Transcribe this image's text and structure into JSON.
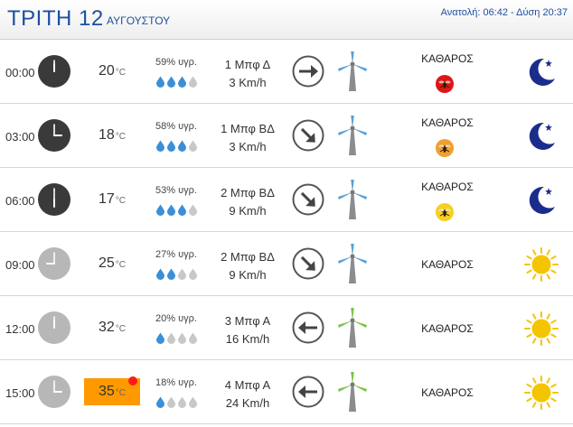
{
  "header": {
    "day": "ΤΡΙΤΗ 12",
    "month": "ΑΥΓΟΥΣΤΟΥ",
    "sun_times": "Ανατολή: 06:42  - Δύση 20:37"
  },
  "rows": [
    {
      "time": "00:00",
      "clock": "night",
      "hour_hand_deg": 0,
      "temp": "20",
      "unit": "°C",
      "hot": false,
      "humidity": "59% υγρ.",
      "drops_filled": 3,
      "wind_force": "1 Μπφ Δ",
      "wind_speed": "3 Km/h",
      "arrow_icon": "arrow-right-icon",
      "arrow_deg": 0,
      "mill_color": "#5a9fd4",
      "condition": "ΚΑΘΑΡΟΣ",
      "mosquito": "#e01515",
      "weather_icon": "moon-icon"
    },
    {
      "time": "03:00",
      "clock": "night",
      "hour_hand_deg": 90,
      "temp": "18",
      "unit": "°C",
      "hot": false,
      "humidity": "58% υγρ.",
      "drops_filled": 3,
      "wind_force": "1 Μπφ ΒΔ",
      "wind_speed": "3 Km/h",
      "arrow_icon": "arrow-down-right-icon",
      "arrow_deg": 45,
      "mill_color": "#5a9fd4",
      "condition": "ΚΑΘΑΡΟΣ",
      "mosquito": "#f0a030",
      "weather_icon": "moon-icon"
    },
    {
      "time": "06:00",
      "clock": "night",
      "hour_hand_deg": 180,
      "temp": "17",
      "unit": "°C",
      "hot": false,
      "humidity": "53% υγρ.",
      "drops_filled": 3,
      "wind_force": "2 Μπφ ΒΔ",
      "wind_speed": "9 Km/h",
      "arrow_icon": "arrow-down-right-icon",
      "arrow_deg": 45,
      "mill_color": "#5a9fd4",
      "condition": "ΚΑΘΑΡΟΣ",
      "mosquito": "#f5d020",
      "weather_icon": "moon-icon"
    },
    {
      "time": "09:00",
      "clock": "day",
      "hour_hand_deg": 270,
      "temp": "25",
      "unit": "°C",
      "hot": false,
      "humidity": "27% υγρ.",
      "drops_filled": 2,
      "wind_force": "2 Μπφ ΒΔ",
      "wind_speed": "9 Km/h",
      "arrow_icon": "arrow-down-right-icon",
      "arrow_deg": 45,
      "mill_color": "#5a9fd4",
      "condition": "ΚΑΘΑΡΟΣ",
      "mosquito": null,
      "weather_icon": "sun-icon"
    },
    {
      "time": "12:00",
      "clock": "day",
      "hour_hand_deg": 0,
      "temp": "32",
      "unit": "°C",
      "hot": false,
      "humidity": "20% υγρ.",
      "drops_filled": 1,
      "wind_force": "3 Μπφ Α",
      "wind_speed": "16 Km/h",
      "arrow_icon": "arrow-left-icon",
      "arrow_deg": 180,
      "mill_color": "#7ec242",
      "condition": "ΚΑΘΑΡΟΣ",
      "mosquito": null,
      "weather_icon": "sun-icon"
    },
    {
      "time": "15:00",
      "clock": "day",
      "hour_hand_deg": 90,
      "temp": "35",
      "unit": "°C",
      "hot": true,
      "humidity": "18% υγρ.",
      "drops_filled": 1,
      "wind_force": "4 Μπφ Α",
      "wind_speed": "24 Km/h",
      "arrow_icon": "arrow-left-icon",
      "arrow_deg": 180,
      "mill_color": "#7ec242",
      "condition": "ΚΑΘΑΡΟΣ",
      "mosquito": null,
      "weather_icon": "sun-icon"
    }
  ],
  "colors": {
    "header_text": "#1e4f9e",
    "hot_temp_bg": "#ff9900",
    "drop_filled": "#3a8fd8",
    "drop_empty": "#c8c8c8",
    "moon": "#1a2d8c",
    "sun": "#f5c400"
  }
}
